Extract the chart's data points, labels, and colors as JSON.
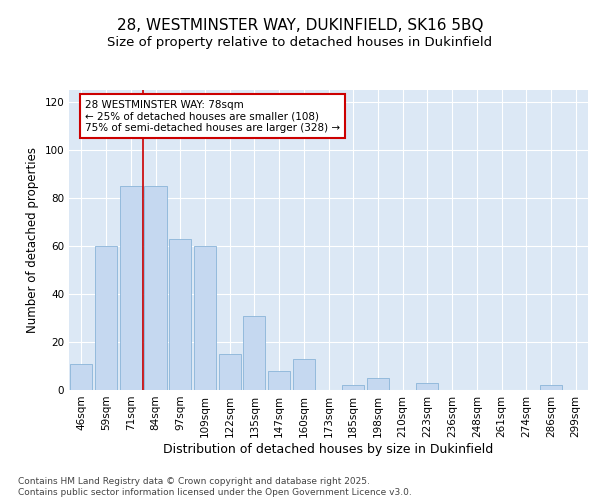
{
  "title": "28, WESTMINSTER WAY, DUKINFIELD, SK16 5BQ",
  "subtitle": "Size of property relative to detached houses in Dukinfield",
  "xlabel": "Distribution of detached houses by size in Dukinfield",
  "ylabel": "Number of detached properties",
  "categories": [
    "46sqm",
    "59sqm",
    "71sqm",
    "84sqm",
    "97sqm",
    "109sqm",
    "122sqm",
    "135sqm",
    "147sqm",
    "160sqm",
    "173sqm",
    "185sqm",
    "198sqm",
    "210sqm",
    "223sqm",
    "236sqm",
    "248sqm",
    "261sqm",
    "274sqm",
    "286sqm",
    "299sqm"
  ],
  "values": [
    11,
    60,
    85,
    85,
    63,
    60,
    15,
    31,
    8,
    13,
    0,
    2,
    5,
    0,
    3,
    0,
    0,
    0,
    0,
    2,
    0
  ],
  "bar_color": "#c5d8f0",
  "bar_edge_color": "#8ab4d8",
  "vline_color": "#cc0000",
  "annotation_text": "28 WESTMINSTER WAY: 78sqm\n← 25% of detached houses are smaller (108)\n75% of semi-detached houses are larger (328) →",
  "annotation_box_facecolor": "#ffffff",
  "annotation_box_edgecolor": "#cc0000",
  "ylim": [
    0,
    125
  ],
  "yticks": [
    0,
    20,
    40,
    60,
    80,
    100,
    120
  ],
  "background_color": "#dce8f5",
  "grid_color": "#ffffff",
  "footer_text": "Contains HM Land Registry data © Crown copyright and database right 2025.\nContains public sector information licensed under the Open Government Licence v3.0.",
  "title_fontsize": 11,
  "subtitle_fontsize": 9.5,
  "ylabel_fontsize": 8.5,
  "xlabel_fontsize": 9,
  "tick_fontsize": 7.5,
  "annotation_fontsize": 7.5,
  "footer_fontsize": 6.5
}
